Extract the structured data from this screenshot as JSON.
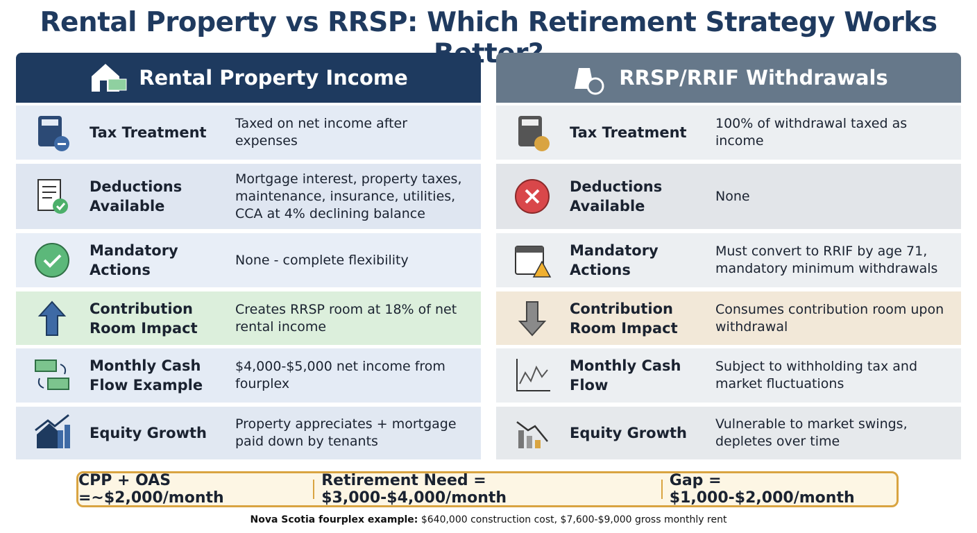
{
  "title": "Rental Property vs RRSP: Which Retirement Strategy Works Better?",
  "columns": [
    {
      "heading": "Rental Property Income",
      "rows": [
        {
          "label": "Tax Treatment",
          "text": "Taxed on net income after expenses"
        },
        {
          "label": "Deductions Available",
          "text": "Mortgage interest, property taxes, maintenance, insurance, utilities, CCA at 4% declining balance"
        },
        {
          "label": "Mandatory Actions",
          "text": "None - complete flexibility"
        },
        {
          "label": "Contribution Room Impact",
          "text": "Creates RRSP room at 18% of net rental income"
        },
        {
          "label": "Monthly Cash Flow Example",
          "text": "$4,000-$5,000 net income from fourplex"
        },
        {
          "label": "Equity Growth",
          "text": "Property appreciates + mortgage paid down by tenants"
        }
      ]
    },
    {
      "heading": "RRSP/RRIF Withdrawals",
      "rows": [
        {
          "label": "Tax Treatment",
          "text": "100% of withdrawal taxed as income"
        },
        {
          "label": "Deductions Available",
          "text": "None"
        },
        {
          "label": "Mandatory Actions",
          "text": "Must convert to RRIF by age 71, mandatory minimum withdrawals"
        },
        {
          "label": "Contribution Room Impact",
          "text": "Consumes contribution room upon withdrawal"
        },
        {
          "label": "Monthly Cash Flow",
          "text": "Subject to withholding tax and market fluctuations"
        },
        {
          "label": "Equity Growth",
          "text": "Vulnerable to market swings, depletes over time"
        }
      ]
    }
  ],
  "summary": [
    "CPP + OAS =~$2,000/month",
    "Retirement Need = $3,000-$4,000/month",
    "Gap = $1,000-$2,000/month"
  ],
  "note": {
    "bold": "Nova Scotia fourplex example:",
    "text": "$640,000 construction cost, $7,600-$9,000 gross monthly rent"
  }
}
